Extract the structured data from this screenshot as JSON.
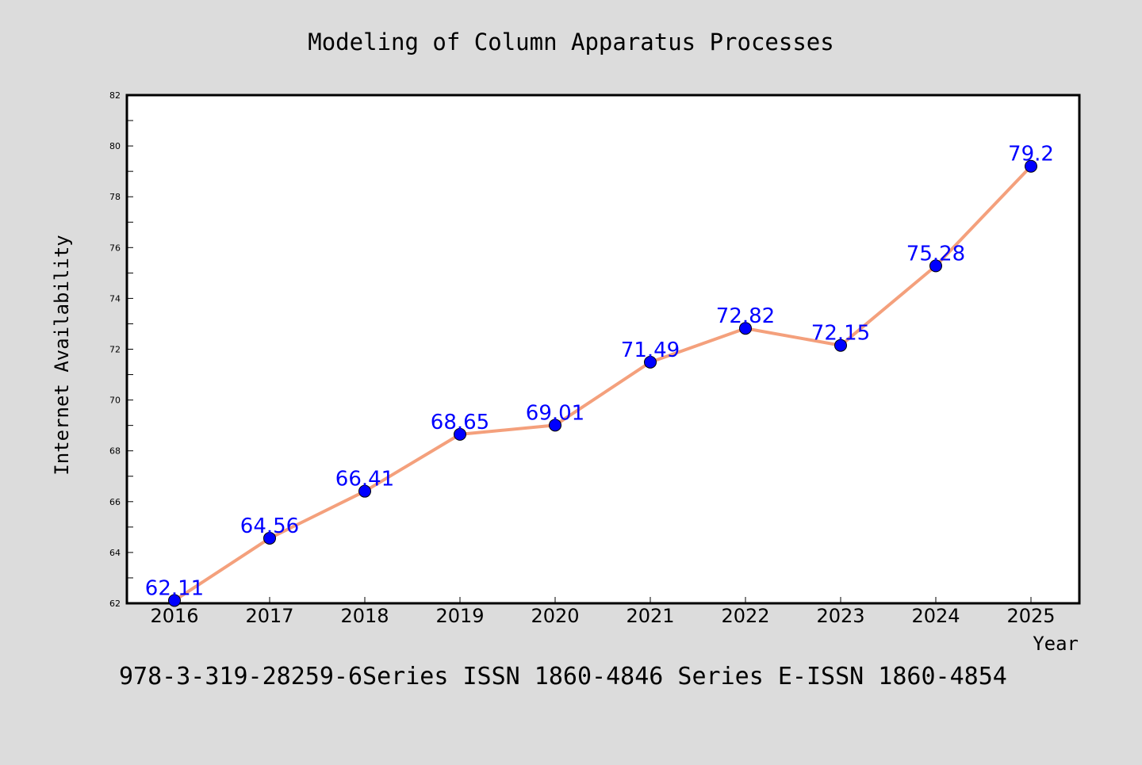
{
  "colors": {
    "background": "#dcdcdc",
    "plot_background": "#ffffff",
    "line": "#f4a07c",
    "marker": "#0000ff",
    "value_label": "#0000ff",
    "axis": "#000000"
  },
  "footer": {
    "text": "978-3-319-28259-6Series ISSN 1860-4846 Series E-ISSN 1860-4854"
  },
  "chart_data": {
    "type": "line",
    "title": "Modeling of Column Apparatus Processes",
    "xlabel": "Year",
    "ylabel": "Internet Availability",
    "categories": [
      "2016",
      "2017",
      "2018",
      "2019",
      "2020",
      "2021",
      "2022",
      "2023",
      "2024",
      "2025"
    ],
    "series": [
      {
        "values": [
          62.11,
          64.56,
          66.41,
          68.65,
          69.01,
          71.49,
          72.82,
          72.15,
          75.28,
          79.2
        ],
        "labels": [
          "62.11",
          "64.56",
          "66.41",
          "68.65",
          "69.01",
          "71.49",
          "72.82",
          "72.15",
          "75.28",
          "79.2"
        ]
      }
    ],
    "ylim": [
      62,
      82
    ],
    "yticks": [
      "62",
      "64",
      "66",
      "68",
      "70",
      "72",
      "74",
      "76",
      "78",
      "80",
      "82"
    ],
    "grid": false,
    "legend": "none"
  }
}
